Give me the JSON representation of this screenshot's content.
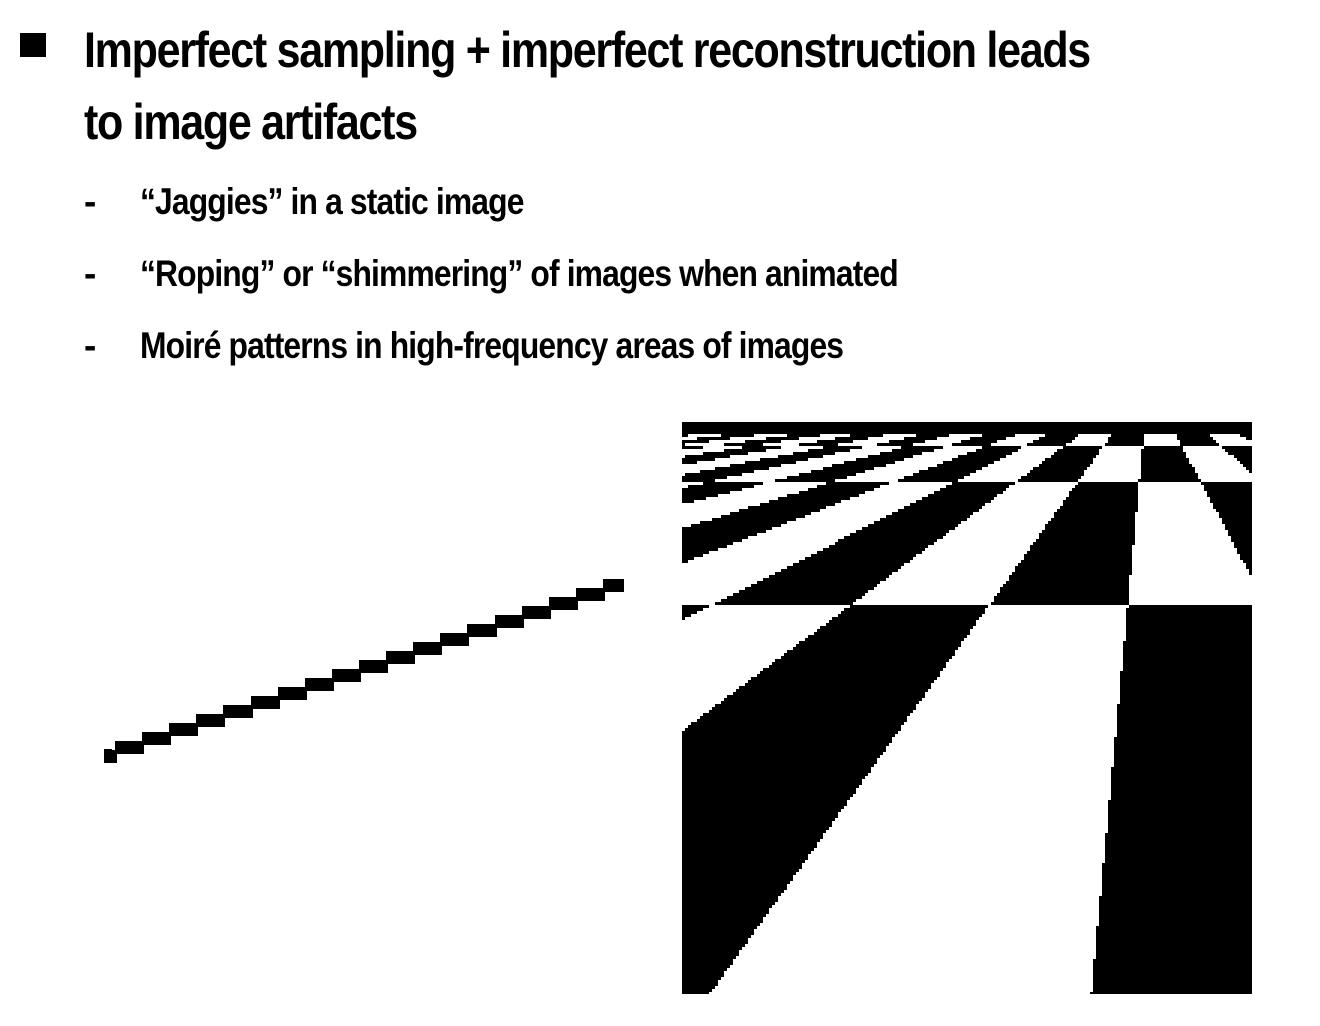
{
  "slide": {
    "main_bullet": "Imperfect sampling + imperfect reconstruction leads to image artifacts",
    "sub_bullets": [
      {
        "dash": "-",
        "text": "“Jaggies” in a static image"
      },
      {
        "dash": "-",
        "text": "“Roping” or “shimmering” of images when animated"
      },
      {
        "dash": "-",
        "text": "Moiré patterns in high-frequency areas of images"
      }
    ]
  },
  "colors": {
    "text": "#000000",
    "background": "#ffffff",
    "pixel": "#000000"
  },
  "icons": {
    "main_bullet_marker": "square-bullet-icon"
  },
  "figures": {
    "left": "aliased-line-staircase",
    "right": "aliased-perspective-checkerboard"
  }
}
